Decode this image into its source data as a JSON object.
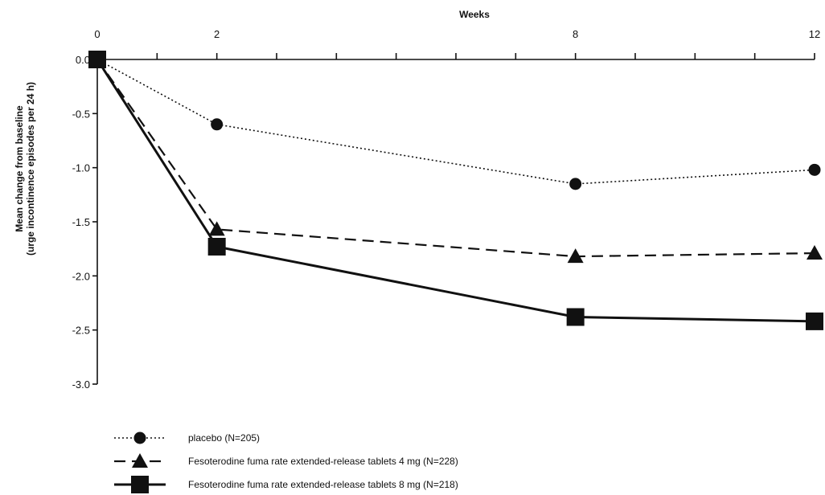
{
  "chart_data": {
    "type": "line",
    "xlabel": "Weeks",
    "ylabel_line1": "Mean change from baseline",
    "ylabel_line2": "(urge incontinence episodes per 24 h)",
    "x_ticks": [
      0,
      2,
      8,
      12
    ],
    "x_tick_labels": [
      "0",
      "2",
      "8",
      "12"
    ],
    "xlim": [
      0,
      12
    ],
    "ylim": [
      -3.0,
      0.0
    ],
    "y_ticks": [
      0.0,
      -0.5,
      -1.0,
      -1.5,
      -2.0,
      -2.5,
      -3.0
    ],
    "y_tick_labels": [
      "0.0",
      "-0.5",
      "-1.0",
      "-1.5",
      "-2.0",
      "-2.5",
      "-3.0"
    ],
    "grid": false,
    "legend_position": "bottom-left",
    "x": [
      0,
      2,
      8,
      12
    ],
    "series": [
      {
        "name": "placebo  (N=205)",
        "marker": "circle",
        "line_style": "dotted",
        "values": [
          0.0,
          -0.6,
          -1.15,
          -1.02
        ]
      },
      {
        "name": "Fesoterodine fuma rate extended-release tablets 4 mg (N=228)",
        "marker": "triangle",
        "line_style": "dashed",
        "values": [
          0.0,
          -1.57,
          -1.82,
          -1.79
        ]
      },
      {
        "name": "Fesoterodine fuma rate extended-release tablets 8 mg (N=218)",
        "marker": "square",
        "line_style": "solid",
        "values": [
          0.0,
          -1.73,
          -2.38,
          -2.42
        ]
      }
    ]
  }
}
